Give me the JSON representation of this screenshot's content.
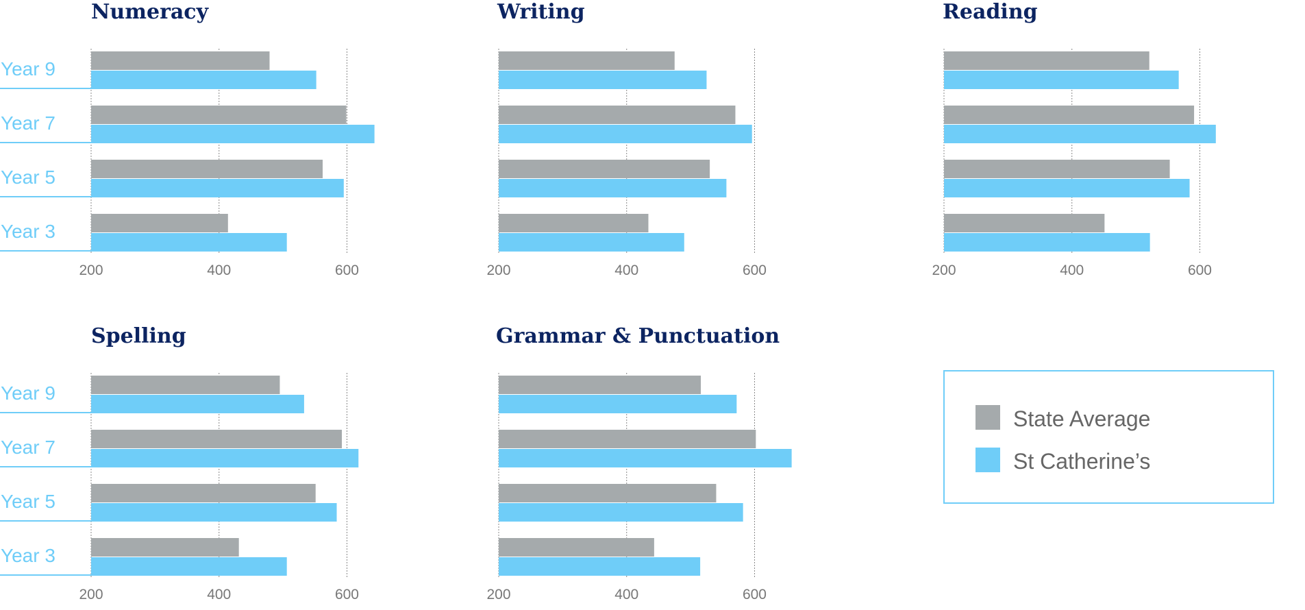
{
  "colors": {
    "state": "#a5aaac",
    "school": "#6fcdf8",
    "title": "#0c2461",
    "year_label": "#6fcdf8",
    "tick_label": "#777777",
    "legend_text": "#666666",
    "legend_border": "#6fcdf8",
    "gridline": "#888888"
  },
  "legend": {
    "state": "State Average",
    "school": "St Catherine’s"
  },
  "chart_data": [
    {
      "type": "bar",
      "orientation": "horizontal",
      "title": "Numeracy",
      "categories": [
        "Year 9",
        "Year 7",
        "Year 5",
        "Year 3"
      ],
      "series": [
        {
          "name": "State Average",
          "values": [
            479,
            599,
            562,
            414
          ]
        },
        {
          "name": "St Catherine’s",
          "values": [
            552,
            643,
            595,
            506
          ]
        }
      ],
      "xticks": [
        200,
        400,
        600
      ],
      "xlim": [
        200,
        640
      ],
      "grid": true,
      "legend_position": "bottom-right"
    },
    {
      "type": "bar",
      "orientation": "horizontal",
      "title": "Writing",
      "categories": [
        "Year 9",
        "Year 7",
        "Year 5",
        "Year 3"
      ],
      "series": [
        {
          "name": "State Average",
          "values": [
            475,
            570,
            530,
            434
          ]
        },
        {
          "name": "St Catherine’s",
          "values": [
            525,
            596,
            556,
            490
          ]
        }
      ],
      "xticks": [
        200,
        400,
        600
      ],
      "xlim": [
        200,
        640
      ],
      "grid": true,
      "legend_position": "bottom-right"
    },
    {
      "type": "bar",
      "orientation": "horizontal",
      "title": "Reading",
      "categories": [
        "Year 9",
        "Year 7",
        "Year 5",
        "Year 3"
      ],
      "series": [
        {
          "name": "State Average",
          "values": [
            521,
            591,
            553,
            451
          ]
        },
        {
          "name": "St Catherine’s",
          "values": [
            567,
            625,
            584,
            522
          ]
        }
      ],
      "xticks": [
        200,
        400,
        600
      ],
      "xlim": [
        200,
        640
      ],
      "grid": true,
      "legend_position": "bottom-right"
    },
    {
      "type": "bar",
      "orientation": "horizontal",
      "title": "Spelling",
      "categories": [
        "Year 9",
        "Year 7",
        "Year 5",
        "Year 3"
      ],
      "series": [
        {
          "name": "State Average",
          "values": [
            495,
            592,
            551,
            431
          ]
        },
        {
          "name": "St Catherine’s",
          "values": [
            533,
            618,
            584,
            506
          ]
        }
      ],
      "xticks": [
        200,
        400,
        600
      ],
      "xlim": [
        200,
        640
      ],
      "grid": true,
      "legend_position": "bottom-right"
    },
    {
      "type": "bar",
      "orientation": "horizontal",
      "title": "Grammar & Punctuation",
      "categories": [
        "Year 9",
        "Year 7",
        "Year 5",
        "Year 3"
      ],
      "series": [
        {
          "name": "State Average",
          "values": [
            516,
            602,
            540,
            443
          ]
        },
        {
          "name": "St Catherine’s",
          "values": [
            572,
            658,
            582,
            515
          ]
        }
      ],
      "xticks": [
        200,
        400,
        600
      ],
      "xlim": [
        200,
        640
      ],
      "grid": true,
      "legend_position": "bottom-right"
    }
  ]
}
